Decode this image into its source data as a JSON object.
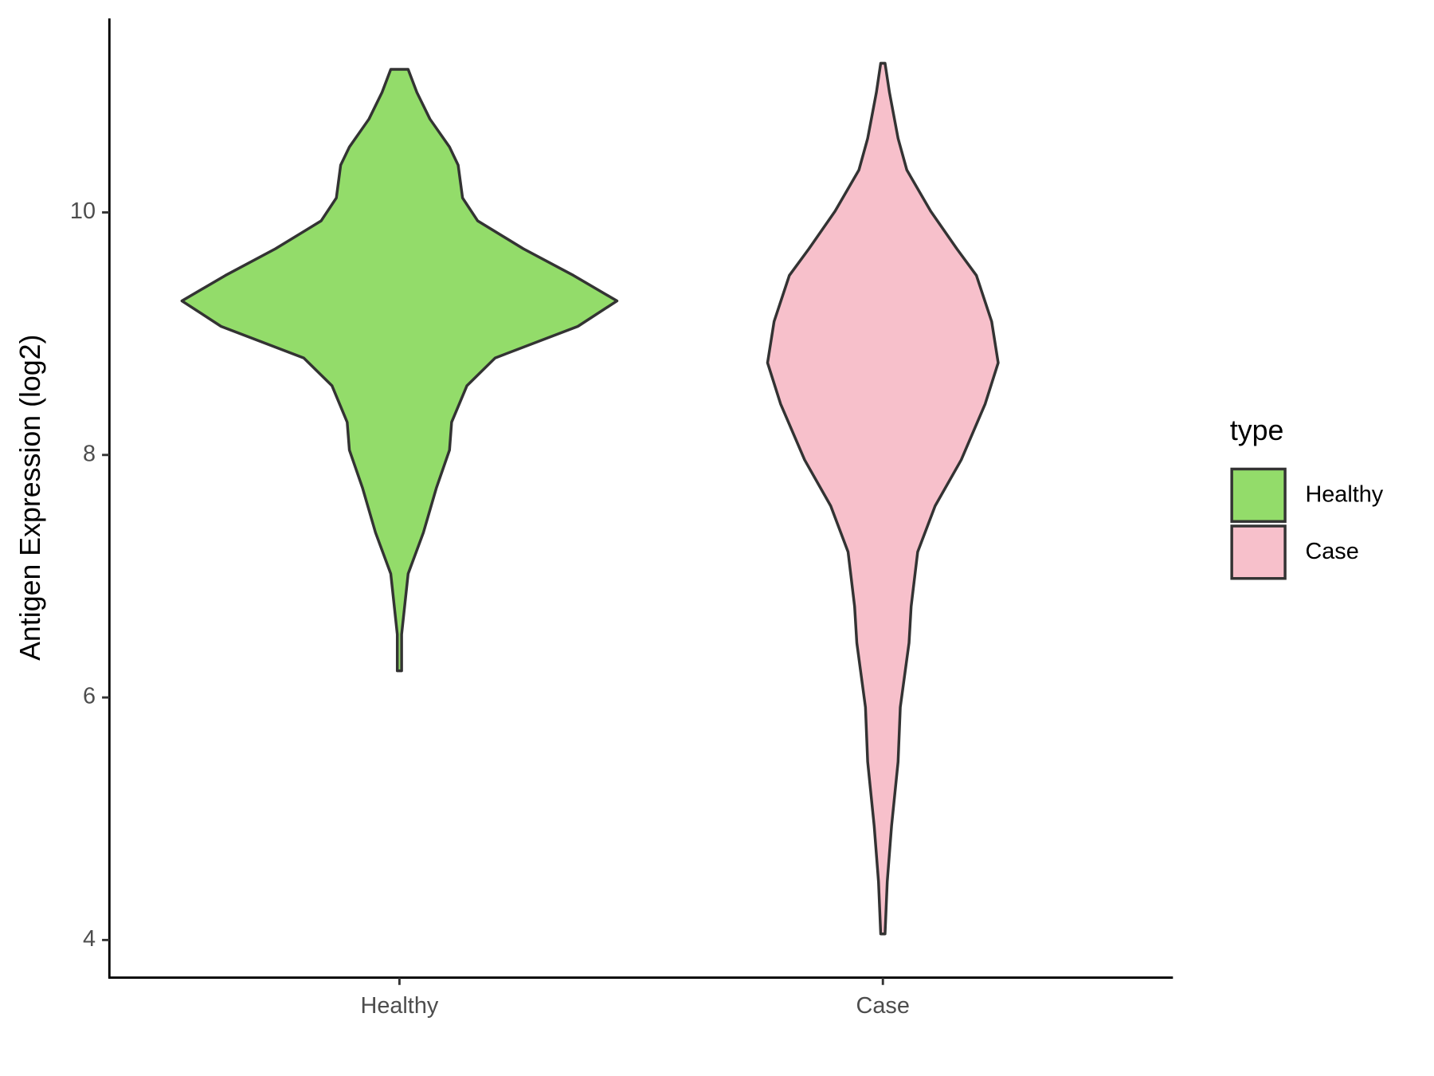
{
  "chart_data": {
    "type": "violin",
    "y_label": "Antigen Expression (log2)",
    "categories": [
      "Healthy",
      "Case"
    ],
    "series": [
      {
        "name": "Healthy",
        "color": "#93dc6a",
        "y": [
          11.18,
          10.99,
          10.77,
          10.54,
          10.39,
          10.12,
          9.93,
          9.7,
          9.48,
          9.27,
          9.06,
          8.8,
          8.57,
          8.27,
          8.04,
          7.73,
          7.36,
          7.02,
          6.52,
          6.22
        ],
        "width": [
          0.04,
          0.08,
          0.14,
          0.23,
          0.27,
          0.29,
          0.36,
          0.57,
          0.8,
          1.0,
          0.82,
          0.44,
          0.31,
          0.24,
          0.23,
          0.17,
          0.11,
          0.04,
          0.01,
          0.01
        ]
      },
      {
        "name": "Case",
        "color": "#f7c0cb",
        "y": [
          11.23,
          10.99,
          10.61,
          10.35,
          10.01,
          9.7,
          9.48,
          9.1,
          8.76,
          8.42,
          7.96,
          7.58,
          7.2,
          6.75,
          6.45,
          5.92,
          5.47,
          4.94,
          4.48,
          4.05
        ],
        "width": [
          0.01,
          0.03,
          0.07,
          0.11,
          0.22,
          0.34,
          0.43,
          0.5,
          0.53,
          0.47,
          0.36,
          0.24,
          0.16,
          0.13,
          0.12,
          0.08,
          0.07,
          0.04,
          0.02,
          0.01
        ]
      }
    ],
    "ylim": [
      3.69,
      11.6
    ],
    "yticks": [
      4,
      6,
      8,
      10
    ],
    "legend_title": "type",
    "legend_position": "right"
  }
}
